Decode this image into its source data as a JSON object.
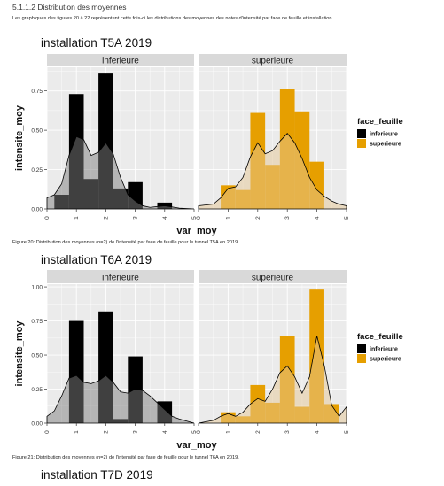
{
  "section_title": "5.1.1.2 Distribution des moyennes",
  "intro": "Les graphiques des figures 20 à 22 représentent cette fois-ci les distributions des moyennes des notes d'intensité par face de feuille et installation.",
  "colors": {
    "inferieure": "#000000",
    "superieure": "#E69F00",
    "panel_bg": "#EBEBEB",
    "strip_bg": "#D9D9D9",
    "grid": "#FFFFFF"
  },
  "figures": [
    {
      "title": "installation T5A 2019",
      "caption": "Figure 20: Distribution des moyennes (n=2) de l'intensité par face de feuille pour le tunnel T5A en 2019."
    },
    {
      "title": "installation T6A 2019",
      "caption": "Figure 21: Distribution des moyennes (n=2) de l'intensité par face de feuille pour le tunnel T6A en 2019."
    }
  ],
  "next_title": "installation T7D 2019",
  "chart_data": [
    {
      "type": "bar",
      "title": "installation T5A 2019",
      "xlabel": "var_moy",
      "ylabel": "intensite_moy",
      "facets": [
        "inferieure",
        "superieure"
      ],
      "legend": {
        "title": "face_feuille",
        "entries": [
          "inferieure",
          "superieure"
        ],
        "position": "right"
      },
      "xlim": [
        0,
        5
      ],
      "ylim": [
        0,
        0.9
      ],
      "x_ticks": [
        "0",
        "1",
        "2",
        "3",
        "4",
        "5"
      ],
      "y_ticks": [
        "0.00",
        "0.25",
        "0.50",
        "0.75"
      ],
      "series": [
        {
          "name": "inferieure",
          "bins": [
            0.5,
            1.0,
            1.5,
            2.0,
            2.5,
            3.0,
            3.5,
            4.0
          ],
          "values": [
            0.09,
            0.73,
            0.19,
            0.86,
            0.13,
            0.17,
            0.0,
            0.04
          ],
          "density": [
            [
              0,
              0.07
            ],
            [
              0.25,
              0.09
            ],
            [
              0.5,
              0.16
            ],
            [
              0.75,
              0.34
            ],
            [
              1,
              0.46
            ],
            [
              1.25,
              0.44
            ],
            [
              1.5,
              0.34
            ],
            [
              1.75,
              0.36
            ],
            [
              2,
              0.42
            ],
            [
              2.25,
              0.35
            ],
            [
              2.5,
              0.2
            ],
            [
              2.75,
              0.09
            ],
            [
              3,
              0.05
            ],
            [
              3.25,
              0.02
            ],
            [
              3.5,
              0.01
            ],
            [
              4,
              0.02
            ],
            [
              4.5,
              0.005
            ],
            [
              5,
              0.0
            ]
          ]
        },
        {
          "name": "superieure",
          "bins": [
            0.5,
            1.0,
            1.5,
            2.0,
            2.5,
            3.0,
            3.5,
            4.0
          ],
          "values": [
            0.0,
            0.15,
            0.12,
            0.61,
            0.28,
            0.76,
            0.62,
            0.3
          ],
          "density": [
            [
              0,
              0.02
            ],
            [
              0.5,
              0.03
            ],
            [
              0.75,
              0.07
            ],
            [
              1,
              0.13
            ],
            [
              1.25,
              0.14
            ],
            [
              1.5,
              0.2
            ],
            [
              1.75,
              0.33
            ],
            [
              2,
              0.42
            ],
            [
              2.25,
              0.35
            ],
            [
              2.5,
              0.37
            ],
            [
              2.75,
              0.43
            ],
            [
              3,
              0.48
            ],
            [
              3.25,
              0.42
            ],
            [
              3.5,
              0.32
            ],
            [
              3.75,
              0.2
            ],
            [
              4,
              0.12
            ],
            [
              4.25,
              0.08
            ],
            [
              4.5,
              0.05
            ],
            [
              4.75,
              0.03
            ],
            [
              5,
              0.02
            ]
          ]
        }
      ]
    },
    {
      "type": "bar",
      "title": "installation T6A 2019",
      "xlabel": "var_moy",
      "ylabel": "intensite_moy",
      "facets": [
        "inferieure",
        "superieure"
      ],
      "legend": {
        "title": "face_feuille",
        "entries": [
          "inferieure",
          "superieure"
        ],
        "position": "right"
      },
      "xlim": [
        0,
        5
      ],
      "ylim": [
        0,
        1.02
      ],
      "x_ticks": [
        "0",
        "1",
        "2",
        "3",
        "4",
        "5"
      ],
      "y_ticks": [
        "0.00",
        "0.25",
        "0.50",
        "0.75",
        "1.00"
      ],
      "series": [
        {
          "name": "inferieure",
          "bins": [
            0.5,
            1.0,
            1.5,
            2.0,
            2.5,
            3.0,
            3.5,
            4.0
          ],
          "values": [
            0.0,
            0.75,
            0.0,
            0.82,
            0.03,
            0.49,
            0.0,
            0.16
          ],
          "density": [
            [
              0,
              0.05
            ],
            [
              0.25,
              0.09
            ],
            [
              0.5,
              0.2
            ],
            [
              0.75,
              0.33
            ],
            [
              1,
              0.35
            ],
            [
              1.25,
              0.3
            ],
            [
              1.5,
              0.29
            ],
            [
              1.75,
              0.31
            ],
            [
              2,
              0.35
            ],
            [
              2.25,
              0.3
            ],
            [
              2.5,
              0.23
            ],
            [
              2.75,
              0.22
            ],
            [
              3,
              0.25
            ],
            [
              3.25,
              0.24
            ],
            [
              3.5,
              0.2
            ],
            [
              3.75,
              0.15
            ],
            [
              4,
              0.1
            ],
            [
              4.25,
              0.05
            ],
            [
              4.5,
              0.03
            ],
            [
              5,
              0.0
            ]
          ]
        },
        {
          "name": "superieure",
          "bins": [
            0.5,
            1.0,
            1.5,
            2.0,
            2.5,
            3.0,
            3.5,
            4.0,
            4.5
          ],
          "values": [
            0.0,
            0.08,
            0.05,
            0.28,
            0.15,
            0.64,
            0.12,
            0.98,
            0.14
          ],
          "density": [
            [
              0,
              0.0
            ],
            [
              0.5,
              0.02
            ],
            [
              0.75,
              0.05
            ],
            [
              1,
              0.07
            ],
            [
              1.25,
              0.05
            ],
            [
              1.5,
              0.08
            ],
            [
              1.75,
              0.14
            ],
            [
              2,
              0.18
            ],
            [
              2.25,
              0.16
            ],
            [
              2.5,
              0.25
            ],
            [
              2.75,
              0.37
            ],
            [
              3,
              0.42
            ],
            [
              3.25,
              0.34
            ],
            [
              3.5,
              0.22
            ],
            [
              3.75,
              0.34
            ],
            [
              4,
              0.64
            ],
            [
              4.25,
              0.42
            ],
            [
              4.5,
              0.13
            ],
            [
              4.75,
              0.05
            ],
            [
              5,
              0.12
            ]
          ]
        }
      ]
    }
  ]
}
